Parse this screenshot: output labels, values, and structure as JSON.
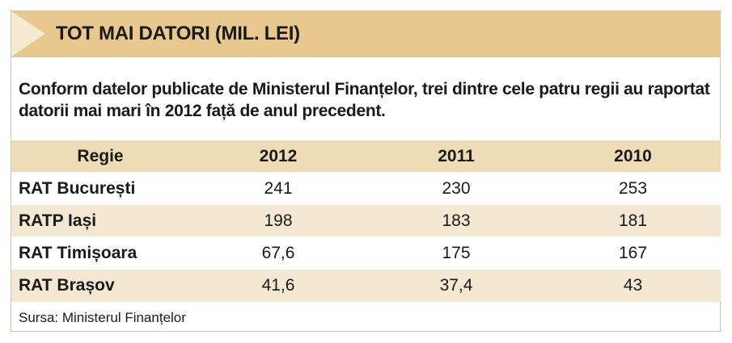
{
  "header": {
    "title": "TOT MAI DATORI (MIL. LEI)"
  },
  "intro": "Conform datelor publicate de Ministerul Finanțelor, trei dintre cele patru regii au raportat datorii mai mari în 2012 față de anul precedent.",
  "chart_data": {
    "type": "table",
    "title": "TOT MAI DATORI (MIL. LEI)",
    "columns": [
      "Regie",
      "2012",
      "2011",
      "2010"
    ],
    "rows": [
      [
        "RAT București",
        "241",
        "230",
        "253"
      ],
      [
        "RATP Iași",
        "198",
        "183",
        "181"
      ],
      [
        "RAT Timișoara",
        "67,6",
        "175",
        "167"
      ],
      [
        "RAT Brașov",
        "41,6",
        "37,4",
        "43"
      ]
    ]
  },
  "source": "Sursa: Ministerul Finanțelor",
  "colors": {
    "header_bg": "#e8c88f",
    "arrow": "#f7ead0",
    "table_header_bg": "#eedcb6",
    "row_alt_bg": "#f3e8d2",
    "border": "#cfc7b3"
  }
}
